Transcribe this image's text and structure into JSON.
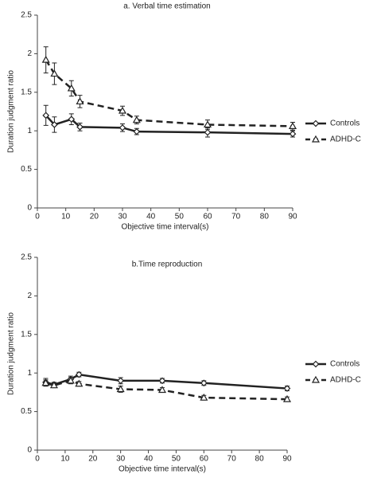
{
  "chart_data": [
    {
      "type": "line",
      "title": "a. Verbal time estimation",
      "x_label": "Objective time interval(s)",
      "y_label": "Duration judgment ratio",
      "x": [
        3,
        6,
        12,
        15,
        30,
        35,
        60,
        90
      ],
      "series": [
        {
          "name": "Controls",
          "color": "#222222",
          "dashed": false,
          "marker": "diamond",
          "values": [
            1.2,
            1.08,
            1.15,
            1.05,
            1.04,
            0.99,
            0.98,
            0.96
          ],
          "errors": [
            0.13,
            0.1,
            0.07,
            0.05,
            0.05,
            0.04,
            0.06,
            0.04
          ]
        },
        {
          "name": "ADHD-C",
          "color": "#222222",
          "dashed": true,
          "marker": "triangle",
          "values": [
            1.92,
            1.74,
            1.55,
            1.38,
            1.26,
            1.14,
            1.08,
            1.06
          ],
          "errors": [
            0.17,
            0.14,
            0.1,
            0.08,
            0.06,
            0.05,
            0.06,
            0.05
          ]
        }
      ],
      "xlim": [
        0,
        90
      ],
      "xticks": [
        0,
        10,
        20,
        30,
        40,
        50,
        60,
        70,
        80,
        90
      ],
      "ylim": [
        0,
        2.5
      ],
      "yticks": [
        0,
        0.5,
        1,
        1.5,
        2,
        2.5
      ],
      "legend": "right"
    },
    {
      "type": "line",
      "title": "b.Time reproduction",
      "x_label": "Objective time interval(s)",
      "y_label": "Duration judgment ratio",
      "x": [
        3,
        6,
        12,
        15,
        30,
        45,
        60,
        90
      ],
      "series": [
        {
          "name": "Controls",
          "color": "#222222",
          "dashed": false,
          "marker": "diamond",
          "values": [
            0.88,
            0.85,
            0.92,
            0.98,
            0.9,
            0.9,
            0.87,
            0.8
          ],
          "errors": [
            0.05,
            0.03,
            0.04,
            0.03,
            0.04,
            0.03,
            0.03,
            0.03
          ]
        },
        {
          "name": "ADHD-C",
          "color": "#222222",
          "dashed": true,
          "marker": "triangle",
          "values": [
            0.87,
            0.84,
            0.9,
            0.86,
            0.79,
            0.78,
            0.68,
            0.66
          ],
          "errors": [
            0.04,
            0.03,
            0.04,
            0.03,
            0.04,
            0.03,
            0.03,
            0.03
          ]
        }
      ],
      "xlim": [
        0,
        90
      ],
      "xticks": [
        0,
        10,
        20,
        30,
        40,
        50,
        60,
        70,
        80,
        90
      ],
      "ylim": [
        0,
        2.5
      ],
      "yticks": [
        0,
        0.5,
        1,
        1.5,
        2,
        2.5
      ],
      "legend": "right"
    }
  ]
}
